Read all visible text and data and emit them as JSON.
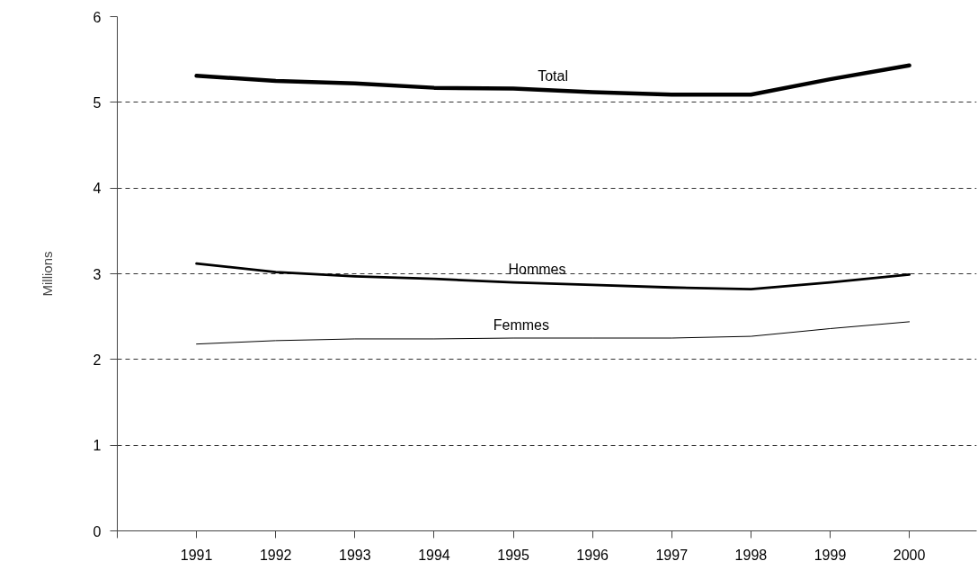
{
  "chart_data": {
    "type": "line",
    "ylabel": "Millions",
    "x": [
      1991,
      1992,
      1993,
      1994,
      1995,
      1996,
      1997,
      1998,
      1999,
      2000
    ],
    "series": [
      {
        "name": "Total",
        "color": "#000000",
        "values": [
          5.31,
          5.25,
          5.22,
          5.17,
          5.16,
          5.12,
          5.09,
          5.09,
          5.27,
          5.43
        ]
      },
      {
        "name": "Hommes",
        "color": "#000000",
        "values": [
          3.12,
          3.02,
          2.97,
          2.94,
          2.9,
          2.87,
          2.84,
          2.82,
          2.9,
          2.99
        ]
      },
      {
        "name": "Femmes",
        "color": "#000000",
        "values": [
          2.18,
          2.22,
          2.24,
          2.24,
          2.25,
          2.25,
          2.25,
          2.27,
          2.36,
          2.44
        ]
      }
    ],
    "xlim": [
      1990,
      2000.85
    ],
    "xticks": [
      {
        "value": 1990,
        "label": null
      },
      1991,
      1992,
      1993,
      1994,
      1995,
      1996,
      1997,
      1998,
      1999,
      2000
    ],
    "ylim": [
      0,
      6
    ],
    "yticks": [
      0,
      1,
      2,
      3,
      4,
      5,
      6
    ],
    "grid": "y",
    "legend": false,
    "marker": "none",
    "line_style": "solid"
  }
}
